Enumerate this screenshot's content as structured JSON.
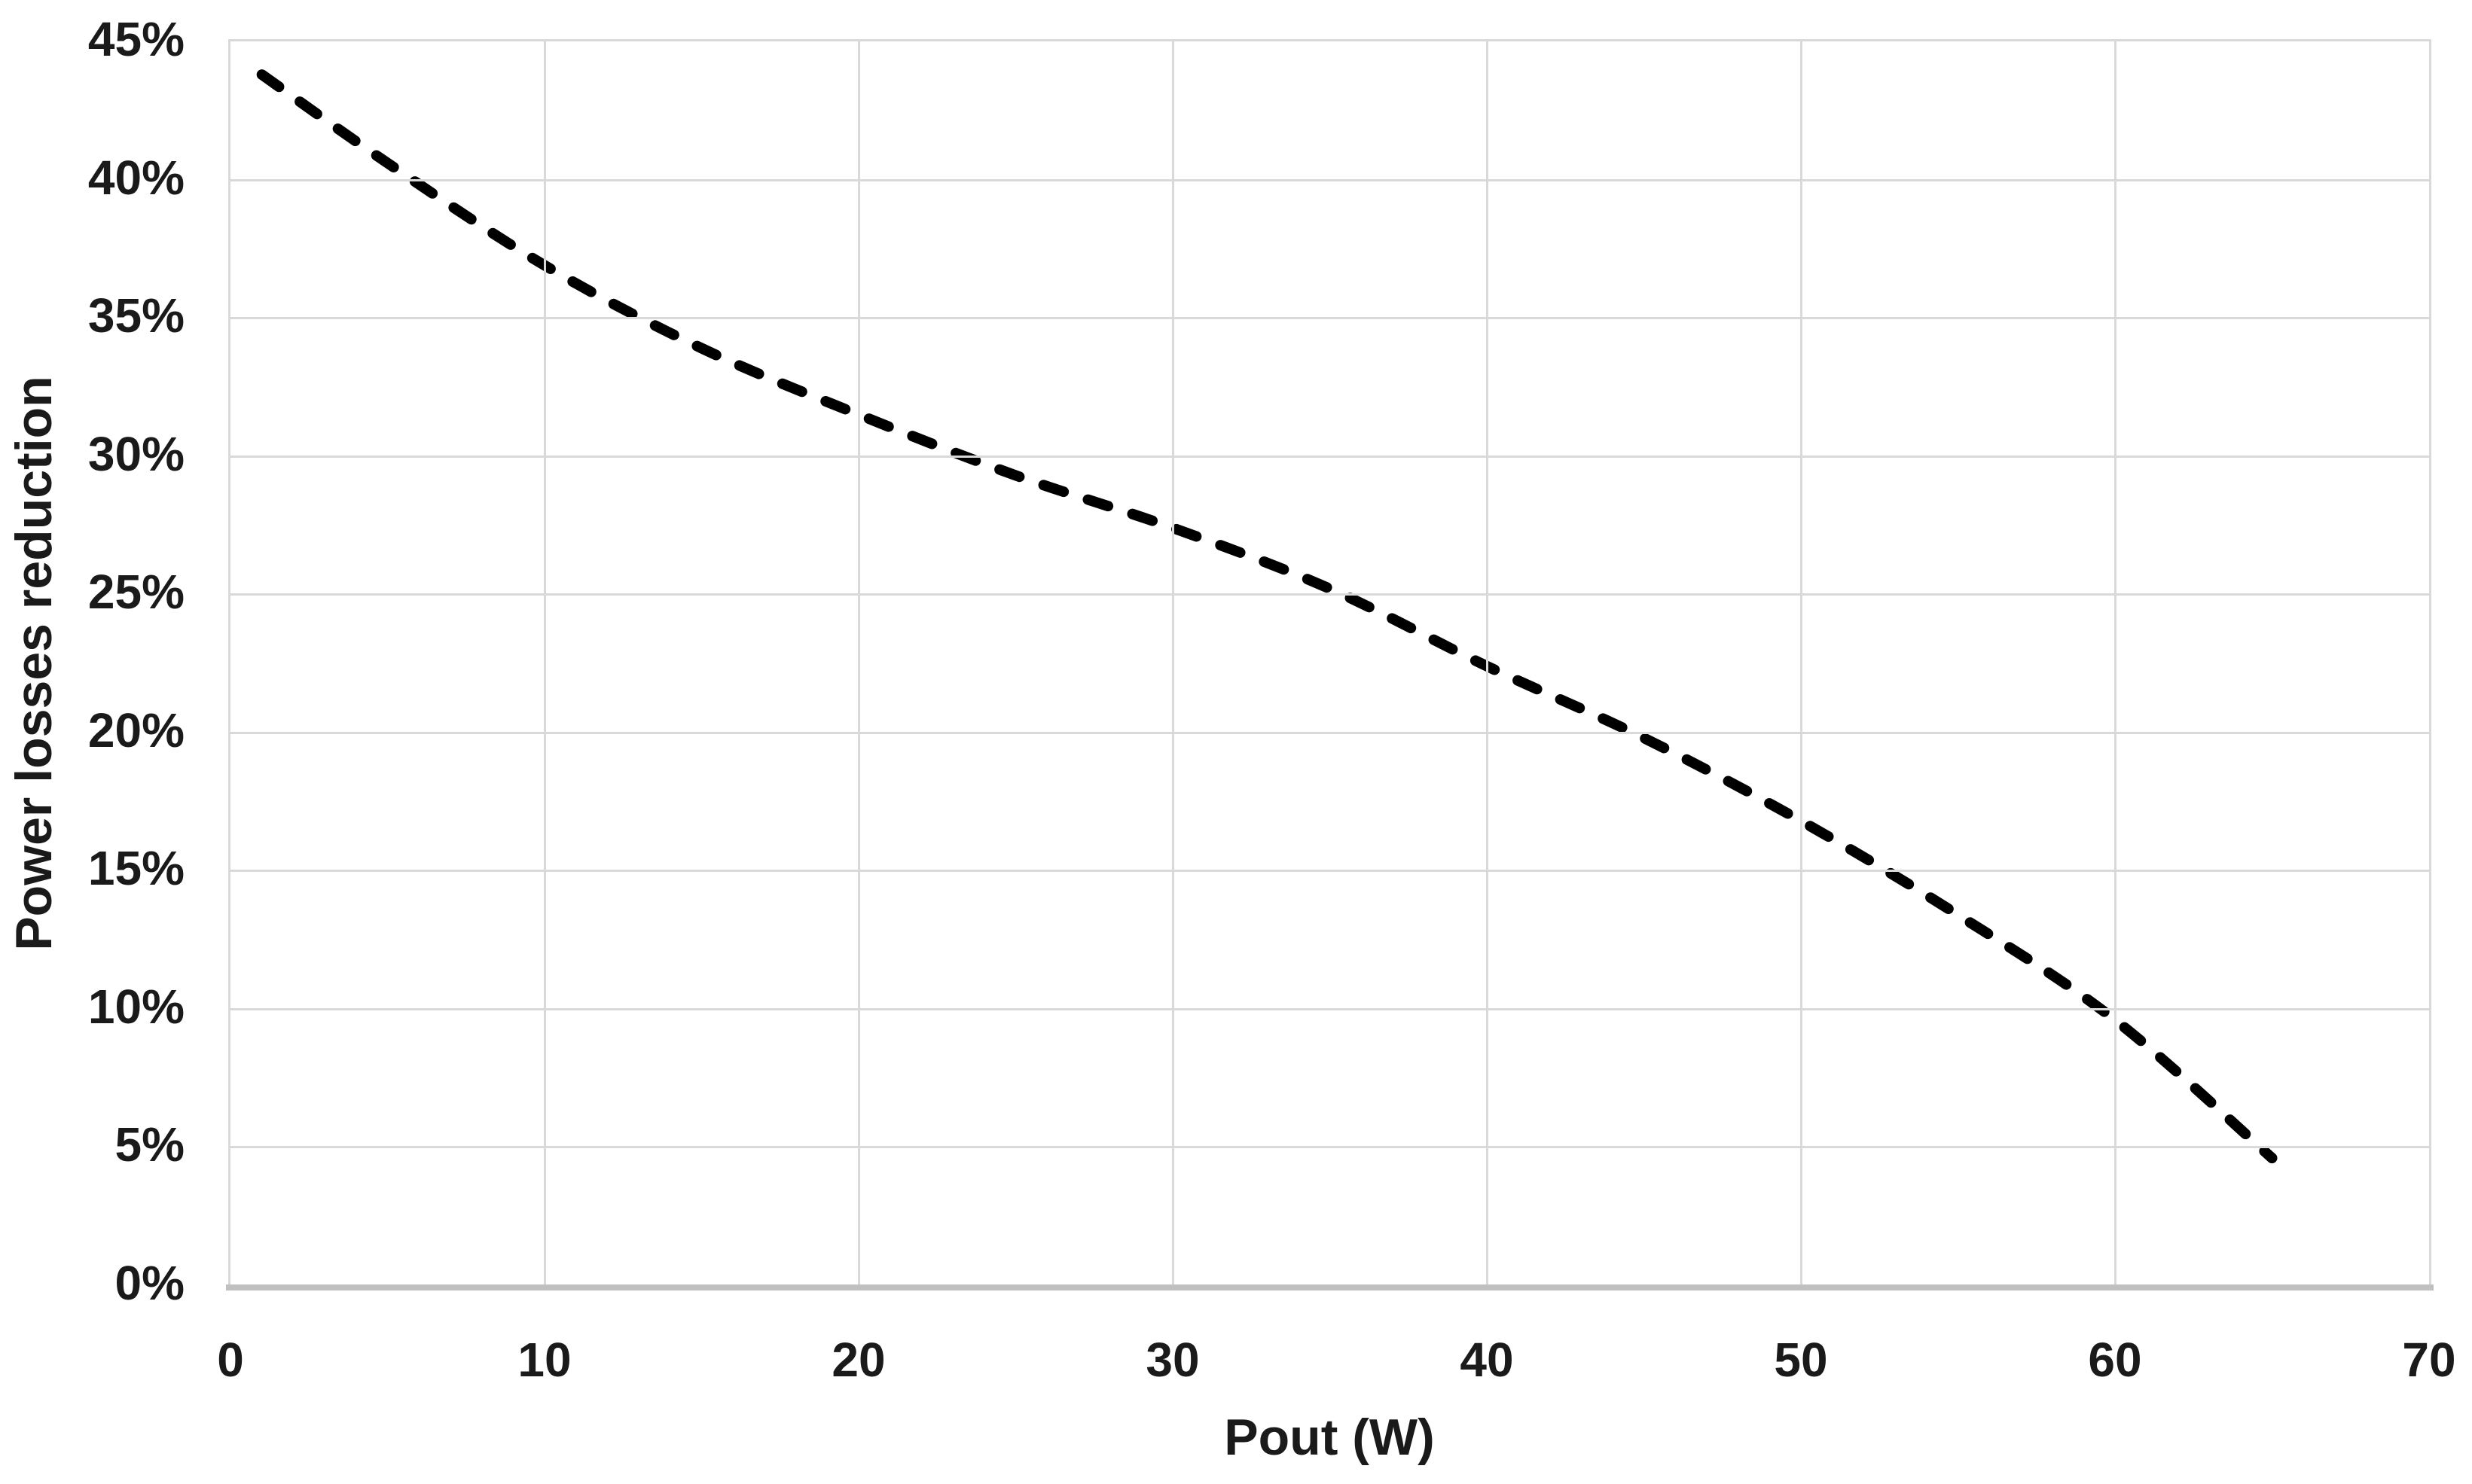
{
  "chart_data": {
    "type": "line",
    "title": "",
    "xlabel": "Pout (W)",
    "ylabel": "Power losses reduction",
    "x": [
      1,
      5,
      10,
      15,
      20,
      25,
      30,
      35,
      40,
      45,
      50,
      55,
      60,
      65
    ],
    "series": [
      {
        "name": "Power losses reduction",
        "values": [
          43.8,
          40.6,
          36.9,
          33.9,
          31.5,
          29.3,
          27.4,
          25.2,
          22.4,
          19.8,
          16.8,
          13.4,
          9.6,
          4.6
        ]
      }
    ],
    "xlim": [
      0,
      70
    ],
    "ylim": [
      0,
      45
    ],
    "x_ticks": [
      "0",
      "10",
      "20",
      "30",
      "40",
      "50",
      "60",
      "70"
    ],
    "y_ticks": [
      "0%",
      "5%",
      "10%",
      "15%",
      "20%",
      "25%",
      "30%",
      "35%",
      "40%",
      "45%"
    ],
    "grid": true,
    "legend": false,
    "line_style": "dashed",
    "line_color": "#000000",
    "gridline_color": "#d9d9d9",
    "axis_line_color": "#c0c0c0",
    "text_color": "#1a1a1a"
  }
}
